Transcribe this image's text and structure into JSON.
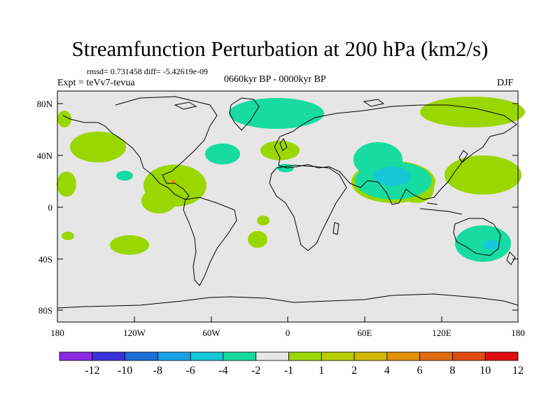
{
  "title": "Streamfunction Perturbation at 200 hPa (km2/s)",
  "stats_line": "rmsd= 0.731458 diff= -5.42619e-09",
  "experiment": "Expt = teVv7-tevua",
  "period": "0660kyr BP - 0000kyr BP",
  "season": "DJF",
  "lat_ticks": [
    "80N",
    "40N",
    "0",
    "40S",
    "80S"
  ],
  "lon_ticks": [
    "180",
    "120W",
    "60W",
    "0",
    "60E",
    "120E",
    "180"
  ],
  "colorbar": {
    "labels": [
      "-12",
      "-10",
      "-8",
      "-6",
      "-4",
      "-2",
      "-1",
      "1",
      "2",
      "4",
      "6",
      "8",
      "10",
      "12"
    ],
    "colors": [
      "#8a2be2",
      "#3a32d9",
      "#1e6fd8",
      "#1aa0e6",
      "#16c8d8",
      "#17dba0",
      "#e6e6e6",
      "#9ad600",
      "#b8d000",
      "#d4b800",
      "#e09000",
      "#e06a10",
      "#e04a10",
      "#e01010"
    ]
  },
  "colors": {
    "background": "#e6e6e6",
    "coast": "#000000",
    "green": "#9ad600",
    "teal": "#17dba0",
    "cyan": "#16c8d8",
    "orange": "#e09000"
  }
}
